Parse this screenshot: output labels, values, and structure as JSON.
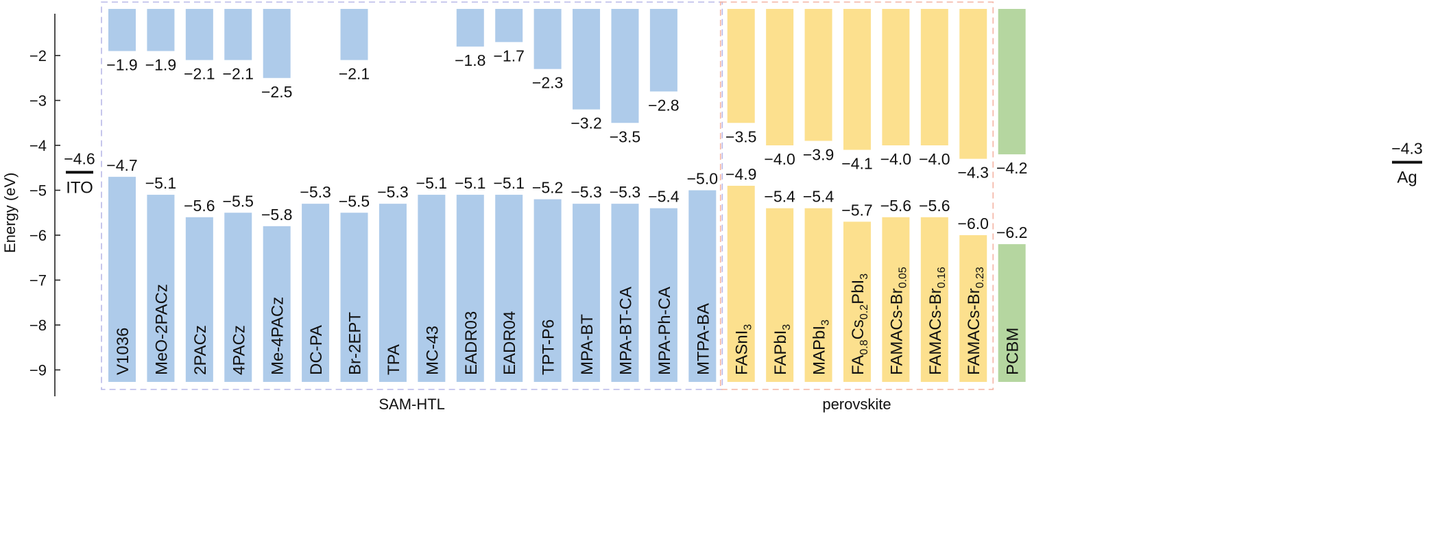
{
  "chart_data": {
    "type": "bar",
    "title": "",
    "ylabel": "Energy (eV)",
    "xlabel": "",
    "ylim": [
      -9.3,
      -1.0
    ],
    "yticks": [
      -2,
      -3,
      -4,
      -5,
      -6,
      -7,
      -8,
      -9
    ],
    "ytick_labels": [
      "−2",
      "−3",
      "−4",
      "−5",
      "−6",
      "−7",
      "−8",
      "−9"
    ],
    "grid": false,
    "colors": {
      "SAM-HTL": "#aecbea",
      "perovskite": "#fce08e",
      "ETL": "#b5d6a0",
      "sam_box": "#b8b8e8",
      "perov_box": "#f4b4a4"
    },
    "groups": [
      {
        "name": "SAM-HTL",
        "label": "SAM-HTL"
      },
      {
        "name": "perovskite",
        "label": "perovskite"
      }
    ],
    "electrodes": [
      {
        "name": "ITO",
        "value": -4.6,
        "value_label": "-4.6"
      },
      {
        "name": "Ag",
        "value": -4.3,
        "value_label": "-4.3"
      }
    ],
    "materials": [
      {
        "name": "V1036",
        "group": "SAM-HTL",
        "lumo": -1.9,
        "lumo_label": "-1.9",
        "homo": -4.7,
        "homo_label": "-4.7"
      },
      {
        "name": "MeO-2PACz",
        "group": "SAM-HTL",
        "lumo": -1.9,
        "lumo_label": "-1.9",
        "homo": -5.1,
        "homo_label": "-5.1"
      },
      {
        "name": "2PACz",
        "group": "SAM-HTL",
        "lumo": -2.1,
        "lumo_label": "-2.1",
        "homo": -5.6,
        "homo_label": "-5.6"
      },
      {
        "name": "4PACz",
        "group": "SAM-HTL",
        "lumo": -2.1,
        "lumo_label": "-2.1",
        "homo": -5.5,
        "homo_label": "-5.5"
      },
      {
        "name": "Me-4PACz",
        "group": "SAM-HTL",
        "lumo": -2.5,
        "lumo_label": "-2.5",
        "homo": -5.8,
        "homo_label": "-5.8"
      },
      {
        "name": "DC-PA",
        "group": "SAM-HTL",
        "lumo": null,
        "lumo_label": "",
        "homo": -5.3,
        "homo_label": "-5.3"
      },
      {
        "name": "Br-2EPT",
        "group": "SAM-HTL",
        "lumo": -2.1,
        "lumo_label": "-2.1",
        "homo": -5.5,
        "homo_label": "-5.5"
      },
      {
        "name": "TPA",
        "group": "SAM-HTL",
        "lumo": null,
        "lumo_label": "",
        "homo": -5.3,
        "homo_label": "-5.3"
      },
      {
        "name": "MC-43",
        "group": "SAM-HTL",
        "lumo": null,
        "lumo_label": "",
        "homo": -5.1,
        "homo_label": "-5.1"
      },
      {
        "name": "EADR03",
        "group": "SAM-HTL",
        "lumo": -1.8,
        "lumo_label": "-1.8",
        "homo": -5.1,
        "homo_label": "-5.1"
      },
      {
        "name": "EADR04",
        "group": "SAM-HTL",
        "lumo": -1.7,
        "lumo_label": "-1.7",
        "homo": -5.1,
        "homo_label": "-5.1"
      },
      {
        "name": "TPT-P6",
        "group": "SAM-HTL",
        "lumo": -2.3,
        "lumo_label": "-2.3",
        "homo": -5.2,
        "homo_label": "-5.2"
      },
      {
        "name": "MPA-BT",
        "group": "SAM-HTL",
        "lumo": -3.2,
        "lumo_label": "-3.2",
        "homo": -5.3,
        "homo_label": "-5.3"
      },
      {
        "name": "MPA-BT-CA",
        "group": "SAM-HTL",
        "lumo": -3.5,
        "lumo_label": "-3.5",
        "homo": -5.3,
        "homo_label": "-5.3"
      },
      {
        "name": "MPA-Ph-CA",
        "group": "SAM-HTL",
        "lumo": -2.8,
        "lumo_label": "-2.8",
        "homo": -5.4,
        "homo_label": "-5.4"
      },
      {
        "name": "MTPA-BA",
        "group": "SAM-HTL",
        "lumo": null,
        "lumo_label": "",
        "homo": -5.0,
        "homo_label": "-5.0"
      },
      {
        "name": "FASnI3",
        "name_parts": [
          [
            "FASnI",
            "n"
          ],
          [
            "3",
            "sub"
          ]
        ],
        "group": "perovskite",
        "lumo": -3.5,
        "lumo_label": "-3.5",
        "homo": -4.9,
        "homo_label": "-4.9"
      },
      {
        "name": "FAPbI3",
        "name_parts": [
          [
            "FAPbI",
            "n"
          ],
          [
            "3",
            "sub"
          ]
        ],
        "group": "perovskite",
        "lumo": -4.0,
        "lumo_label": "-4.0",
        "homo": -5.4,
        "homo_label": "-5.4"
      },
      {
        "name": "MAPbI3",
        "name_parts": [
          [
            "MAPbI",
            "n"
          ],
          [
            "3",
            "sub"
          ]
        ],
        "group": "perovskite",
        "lumo": -3.9,
        "lumo_label": "-3.9",
        "homo": -5.4,
        "homo_label": "-5.4"
      },
      {
        "name": "FA0.8Cs0.2PbI3",
        "name_parts": [
          [
            "FA",
            "n"
          ],
          [
            "0.8",
            "sub"
          ],
          [
            "Cs",
            "n"
          ],
          [
            "0.2",
            "sub"
          ],
          [
            "PbI",
            "n"
          ],
          [
            "3",
            "sub"
          ]
        ],
        "group": "perovskite",
        "lumo": -4.1,
        "lumo_label": "-4.1",
        "homo": -5.7,
        "homo_label": "-5.7"
      },
      {
        "name": "FAMACs-Br0.05",
        "name_parts": [
          [
            "FAMACs-Br",
            "n"
          ],
          [
            "0.05",
            "sub"
          ]
        ],
        "group": "perovskite",
        "lumo": -4.0,
        "lumo_label": "-4.0",
        "homo": -5.6,
        "homo_label": "-5.6"
      },
      {
        "name": "FAMACs-Br0.16",
        "name_parts": [
          [
            "FAMACs-Br",
            "n"
          ],
          [
            "0.16",
            "sub"
          ]
        ],
        "group": "perovskite",
        "lumo": -4.0,
        "lumo_label": "-4.0",
        "homo": -5.6,
        "homo_label": "-5.6"
      },
      {
        "name": "FAMACs-Br0.23",
        "name_parts": [
          [
            "FAMACs-Br",
            "n"
          ],
          [
            "0.23",
            "sub"
          ]
        ],
        "group": "perovskite",
        "lumo": -4.3,
        "lumo_label": "-4.3",
        "homo": -6.0,
        "homo_label": "-6.0"
      },
      {
        "name": "PCBM",
        "group": "ETL",
        "lumo": -4.2,
        "lumo_label": "-4.2",
        "homo": -6.2,
        "homo_label": "-6.2"
      }
    ]
  }
}
